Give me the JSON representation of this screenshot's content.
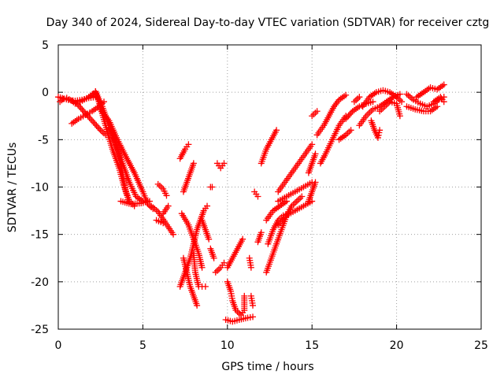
{
  "chart_data": {
    "type": "scatter",
    "title": "Day 340 of 2024, Sidereal Day-to-day VTEC variation (SDTVAR) for receiver cztg",
    "xlabel": "GPS time / hours",
    "ylabel": "SDTVAR / TECUs",
    "xlim": [
      0,
      25
    ],
    "ylim": [
      -25,
      5
    ],
    "xticks": [
      0,
      5,
      10,
      15,
      20,
      25
    ],
    "yticks": [
      -25,
      -20,
      -15,
      -10,
      -5,
      0,
      5
    ],
    "grid": true,
    "marker": "+",
    "color": "#ff0000",
    "tracks": [
      {
        "name": "track-01",
        "points": [
          [
            0.0,
            -0.5
          ],
          [
            0.6,
            -0.8
          ],
          [
            1.0,
            -0.9
          ],
          [
            1.4,
            -0.8
          ],
          [
            1.8,
            -0.6
          ],
          [
            2.2,
            -0.5
          ]
        ]
      },
      {
        "name": "track-02",
        "points": [
          [
            0.1,
            -1.0
          ],
          [
            0.3,
            -0.7
          ],
          [
            0.5,
            -0.6
          ],
          [
            0.8,
            -0.9
          ],
          [
            1.0,
            -1.2
          ]
        ]
      },
      {
        "name": "track-03",
        "points": [
          [
            0.8,
            -3.3
          ],
          [
            1.2,
            -2.8
          ],
          [
            1.6,
            -2.4
          ],
          [
            2.0,
            -2.0
          ],
          [
            2.4,
            -1.5
          ],
          [
            2.7,
            -1.0
          ]
        ]
      },
      {
        "name": "track-04",
        "points": [
          [
            1.0,
            -1.0
          ],
          [
            1.5,
            -2.0
          ],
          [
            2.0,
            -3.0
          ],
          [
            2.5,
            -4.0
          ],
          [
            2.8,
            -4.5
          ]
        ]
      },
      {
        "name": "track-05",
        "points": [
          [
            1.3,
            -1.0
          ],
          [
            1.8,
            -0.5
          ],
          [
            2.2,
            0.0
          ],
          [
            2.4,
            -1.0
          ],
          [
            2.8,
            -3.5
          ],
          [
            3.2,
            -6.0
          ],
          [
            3.6,
            -8.0
          ],
          [
            3.9,
            -10.0
          ],
          [
            4.2,
            -11.5
          ],
          [
            4.5,
            -12.0
          ]
        ]
      },
      {
        "name": "track-06",
        "points": [
          [
            2.2,
            0.1
          ],
          [
            2.6,
            -1.5
          ],
          [
            3.0,
            -3.5
          ],
          [
            3.4,
            -5.5
          ],
          [
            3.8,
            -7.5
          ],
          [
            4.2,
            -9.5
          ],
          [
            4.6,
            -11.0
          ],
          [
            5.0,
            -11.5
          ]
        ]
      },
      {
        "name": "track-07",
        "points": [
          [
            2.5,
            -1.8
          ],
          [
            3.0,
            -3.0
          ],
          [
            3.5,
            -5.0
          ],
          [
            4.0,
            -6.8
          ],
          [
            4.5,
            -8.5
          ],
          [
            5.0,
            -10.5
          ],
          [
            5.3,
            -11.8
          ],
          [
            5.6,
            -12.3
          ]
        ]
      },
      {
        "name": "track-08",
        "points": [
          [
            3.1,
            -3.8
          ],
          [
            3.5,
            -6.0
          ],
          [
            3.8,
            -8.5
          ],
          [
            4.0,
            -10.5
          ],
          [
            4.2,
            -11.5
          ]
        ]
      },
      {
        "name": "track-09",
        "points": [
          [
            3.7,
            -11.5
          ],
          [
            4.3,
            -11.8
          ],
          [
            4.9,
            -11.7
          ],
          [
            5.4,
            -11.5
          ]
        ]
      },
      {
        "name": "track-10",
        "points": [
          [
            5.5,
            -12.0
          ],
          [
            5.9,
            -12.6
          ],
          [
            6.2,
            -13.4
          ],
          [
            6.5,
            -14.2
          ],
          [
            6.8,
            -15.0
          ]
        ]
      },
      {
        "name": "track-11",
        "points": [
          [
            5.8,
            -13.5
          ],
          [
            6.2,
            -13.8
          ]
        ]
      },
      {
        "name": "track-12",
        "points": [
          [
            5.9,
            -9.7
          ],
          [
            6.2,
            -10.2
          ],
          [
            6.4,
            -10.9
          ]
        ]
      },
      {
        "name": "track-13",
        "points": [
          [
            6.2,
            -12.8
          ],
          [
            6.5,
            -12.0
          ]
        ]
      },
      {
        "name": "track-14",
        "points": [
          [
            7.2,
            -7.0
          ],
          [
            7.5,
            -6.0
          ],
          [
            7.7,
            -5.5
          ]
        ]
      },
      {
        "name": "track-15",
        "points": [
          [
            7.4,
            -10.5
          ],
          [
            7.6,
            -9.5
          ],
          [
            7.8,
            -8.5
          ],
          [
            8.0,
            -7.5
          ]
        ]
      },
      {
        "name": "track-16",
        "points": [
          [
            7.3,
            -12.8
          ],
          [
            7.7,
            -14.0
          ],
          [
            8.0,
            -15.5
          ],
          [
            8.3,
            -17.0
          ],
          [
            8.5,
            -18.5
          ]
        ]
      },
      {
        "name": "track-17",
        "points": [
          [
            7.2,
            -20.5
          ],
          [
            7.4,
            -19.5
          ],
          [
            7.6,
            -18.5
          ],
          [
            7.8,
            -17.5
          ],
          [
            8.0,
            -16.0
          ],
          [
            8.2,
            -14.5
          ],
          [
            8.4,
            -13.5
          ],
          [
            8.6,
            -12.5
          ],
          [
            8.8,
            -12.0
          ]
        ]
      },
      {
        "name": "track-18",
        "points": [
          [
            7.4,
            -17.5
          ],
          [
            7.6,
            -19.0
          ],
          [
            7.8,
            -20.5
          ],
          [
            8.0,
            -21.5
          ],
          [
            8.2,
            -22.5
          ]
        ]
      },
      {
        "name": "track-19",
        "points": [
          [
            8.0,
            -17.0
          ],
          [
            8.1,
            -19.0
          ],
          [
            8.3,
            -20.5
          ]
        ]
      },
      {
        "name": "track-20",
        "points": [
          [
            8.5,
            -13.5
          ],
          [
            8.7,
            -14.5
          ],
          [
            8.9,
            -15.5
          ]
        ]
      },
      {
        "name": "track-21",
        "points": [
          [
            8.5,
            -20.5
          ],
          [
            8.7,
            -20.5
          ]
        ]
      },
      {
        "name": "track-22",
        "points": [
          [
            9.0,
            -16.5
          ],
          [
            9.2,
            -17.5
          ]
        ]
      },
      {
        "name": "track-23",
        "points": [
          [
            9.0,
            -10.0
          ],
          [
            9.1,
            -10.0
          ]
        ]
      },
      {
        "name": "track-24",
        "points": [
          [
            9.3,
            -19.0
          ],
          [
            9.6,
            -18.5
          ],
          [
            9.8,
            -18.0
          ]
        ]
      },
      {
        "name": "track-25",
        "points": [
          [
            9.4,
            -7.5
          ],
          [
            9.6,
            -8.0
          ],
          [
            9.8,
            -7.5
          ]
        ]
      },
      {
        "name": "track-26",
        "points": [
          [
            10.0,
            -18.5
          ],
          [
            10.3,
            -17.5
          ],
          [
            10.6,
            -16.5
          ],
          [
            10.9,
            -15.5
          ]
        ]
      },
      {
        "name": "track-27",
        "points": [
          [
            10.0,
            -20.0
          ],
          [
            10.2,
            -21.0
          ],
          [
            10.3,
            -22.0
          ],
          [
            10.5,
            -23.0
          ],
          [
            10.8,
            -23.5
          ],
          [
            11.0,
            -23.0
          ],
          [
            11.0,
            -21.5
          ]
        ]
      },
      {
        "name": "track-28",
        "points": [
          [
            9.9,
            -24.0
          ],
          [
            10.3,
            -24.2
          ],
          [
            10.7,
            -24.0
          ],
          [
            11.2,
            -23.8
          ],
          [
            11.5,
            -23.7
          ]
        ]
      },
      {
        "name": "track-29",
        "points": [
          [
            11.3,
            -17.5
          ],
          [
            11.4,
            -18.5
          ]
        ]
      },
      {
        "name": "track-30",
        "points": [
          [
            11.4,
            -21.5
          ],
          [
            11.5,
            -22.5
          ]
        ]
      },
      {
        "name": "track-31",
        "points": [
          [
            11.8,
            -15.8
          ],
          [
            12.0,
            -14.8
          ]
        ]
      },
      {
        "name": "track-32",
        "points": [
          [
            11.6,
            -10.5
          ],
          [
            11.8,
            -11.0
          ]
        ]
      },
      {
        "name": "track-33",
        "points": [
          [
            12.0,
            -7.5
          ],
          [
            12.3,
            -6.0
          ],
          [
            12.6,
            -5.0
          ],
          [
            12.9,
            -4.0
          ]
        ]
      },
      {
        "name": "track-34",
        "points": [
          [
            12.3,
            -19.0
          ],
          [
            12.6,
            -17.5
          ],
          [
            12.9,
            -16.0
          ],
          [
            13.2,
            -14.5
          ],
          [
            13.5,
            -13.0
          ],
          [
            13.8,
            -12.0
          ],
          [
            14.1,
            -11.5
          ],
          [
            14.4,
            -11.0
          ]
        ]
      },
      {
        "name": "track-35",
        "points": [
          [
            12.4,
            -16.0
          ],
          [
            12.7,
            -14.5
          ],
          [
            13.0,
            -13.5
          ],
          [
            13.3,
            -13.0
          ],
          [
            13.6,
            -12.8
          ]
        ]
      },
      {
        "name": "track-36",
        "points": [
          [
            12.3,
            -13.5
          ],
          [
            12.7,
            -12.5
          ],
          [
            13.1,
            -12.0
          ],
          [
            13.5,
            -11.5
          ]
        ]
      },
      {
        "name": "track-37",
        "points": [
          [
            13.0,
            -14.0
          ],
          [
            13.5,
            -13.0
          ],
          [
            14.0,
            -12.5
          ],
          [
            14.5,
            -12.0
          ],
          [
            15.0,
            -11.5
          ]
        ]
      },
      {
        "name": "track-38",
        "points": [
          [
            13.0,
            -11.5
          ],
          [
            13.5,
            -11.0
          ],
          [
            14.0,
            -10.5
          ],
          [
            14.5,
            -10.0
          ],
          [
            15.0,
            -9.5
          ]
        ]
      },
      {
        "name": "track-39",
        "points": [
          [
            13.0,
            -10.5
          ],
          [
            13.4,
            -9.5
          ],
          [
            13.8,
            -8.5
          ],
          [
            14.2,
            -7.5
          ],
          [
            14.6,
            -6.5
          ],
          [
            15.0,
            -5.5
          ]
        ]
      },
      {
        "name": "track-40",
        "points": [
          [
            14.8,
            -11.5
          ],
          [
            15.0,
            -10.5
          ],
          [
            15.2,
            -9.5
          ]
        ]
      },
      {
        "name": "track-41",
        "points": [
          [
            14.8,
            -8.5
          ],
          [
            15.0,
            -7.5
          ],
          [
            15.2,
            -6.5
          ]
        ]
      },
      {
        "name": "track-42",
        "points": [
          [
            15.0,
            -2.5
          ],
          [
            15.3,
            -2.0
          ]
        ]
      },
      {
        "name": "track-43",
        "points": [
          [
            15.3,
            -4.5
          ],
          [
            15.7,
            -3.5
          ],
          [
            16.0,
            -2.5
          ],
          [
            16.3,
            -1.5
          ],
          [
            16.6,
            -0.8
          ],
          [
            17.0,
            -0.3
          ]
        ]
      },
      {
        "name": "track-44",
        "points": [
          [
            15.5,
            -7.5
          ],
          [
            15.8,
            -6.5
          ],
          [
            16.2,
            -5.0
          ],
          [
            16.6,
            -3.5
          ],
          [
            17.0,
            -2.5
          ]
        ]
      },
      {
        "name": "track-45",
        "points": [
          [
            16.6,
            -5.0
          ],
          [
            17.0,
            -4.5
          ],
          [
            17.3,
            -4.0
          ]
        ]
      },
      {
        "name": "track-46",
        "points": [
          [
            17.0,
            -2.8
          ],
          [
            17.4,
            -2.0
          ],
          [
            17.8,
            -1.5
          ],
          [
            18.2,
            -1.2
          ],
          [
            18.6,
            -1.0
          ]
        ]
      },
      {
        "name": "track-47",
        "points": [
          [
            17.5,
            -1.0
          ],
          [
            17.8,
            -0.5
          ]
        ]
      },
      {
        "name": "track-48",
        "points": [
          [
            17.8,
            -3.5
          ],
          [
            18.2,
            -2.5
          ],
          [
            18.6,
            -1.8
          ],
          [
            19.0,
            -1.5
          ],
          [
            19.4,
            -1.0
          ],
          [
            19.8,
            -0.5
          ],
          [
            20.2,
            -0.2
          ]
        ]
      },
      {
        "name": "track-49",
        "points": [
          [
            18.0,
            -1.5
          ],
          [
            18.4,
            -0.5
          ],
          [
            18.8,
            0.0
          ],
          [
            19.2,
            0.2
          ],
          [
            19.6,
            0.0
          ],
          [
            20.0,
            -0.5
          ],
          [
            20.3,
            -1.0
          ]
        ]
      },
      {
        "name": "track-50",
        "points": [
          [
            18.5,
            -3.0
          ],
          [
            18.7,
            -4.0
          ],
          [
            18.9,
            -4.8
          ],
          [
            19.0,
            -4.0
          ]
        ]
      },
      {
        "name": "track-51",
        "points": [
          [
            19.0,
            -2.0
          ],
          [
            19.3,
            -1.5
          ],
          [
            19.6,
            -1.0
          ],
          [
            20.0,
            -1.2
          ],
          [
            20.2,
            -2.5
          ]
        ]
      },
      {
        "name": "track-52",
        "points": [
          [
            20.6,
            -0.2
          ],
          [
            21.0,
            -0.8
          ],
          [
            21.4,
            -1.2
          ],
          [
            21.8,
            -1.5
          ],
          [
            22.2,
            -1.2
          ],
          [
            22.5,
            -0.8
          ],
          [
            22.8,
            -0.5
          ]
        ]
      },
      {
        "name": "track-53",
        "points": [
          [
            20.6,
            -1.5
          ],
          [
            21.1,
            -1.8
          ],
          [
            21.6,
            -2.0
          ],
          [
            22.0,
            -2.0
          ],
          [
            22.4,
            -1.5
          ]
        ]
      },
      {
        "name": "track-54",
        "points": [
          [
            21.2,
            -0.5
          ],
          [
            21.6,
            0.0
          ],
          [
            22.0,
            0.5
          ],
          [
            22.4,
            0.3
          ],
          [
            22.8,
            0.8
          ]
        ]
      },
      {
        "name": "track-55",
        "points": [
          [
            22.2,
            -1.0
          ],
          [
            22.6,
            -0.5
          ],
          [
            22.8,
            -1.0
          ]
        ]
      }
    ]
  }
}
